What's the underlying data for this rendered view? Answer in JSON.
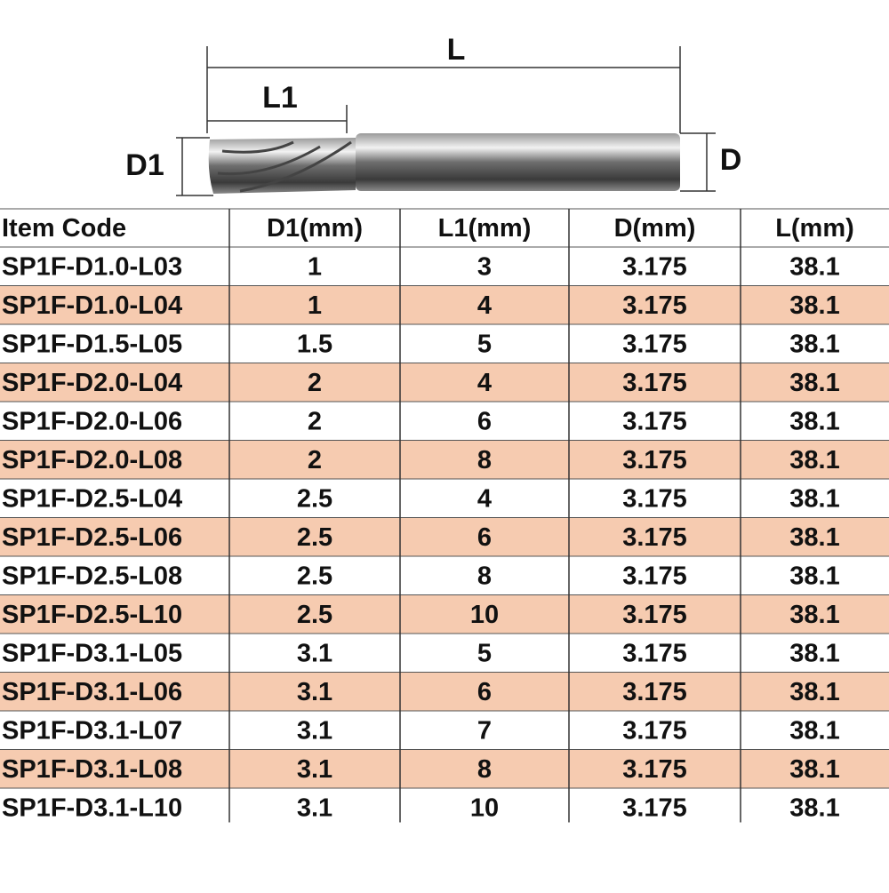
{
  "diagram": {
    "length_label": "L",
    "flute_length_label": "L1",
    "cutting_diameter_label": "D1",
    "shank_diameter_label": "D"
  },
  "table": {
    "header": [
      "Item Code",
      "D1(mm)",
      "L1(mm)",
      "D(mm)",
      "L(mm)"
    ],
    "rows": [
      [
        "SP1F-D1.0-L03",
        "1",
        "3",
        "3.175",
        "38.1"
      ],
      [
        "SP1F-D1.0-L04",
        "1",
        "4",
        "3.175",
        "38.1"
      ],
      [
        "SP1F-D1.5-L05",
        "1.5",
        "5",
        "3.175",
        "38.1"
      ],
      [
        "SP1F-D2.0-L04",
        "2",
        "4",
        "3.175",
        "38.1"
      ],
      [
        "SP1F-D2.0-L06",
        "2",
        "6",
        "3.175",
        "38.1"
      ],
      [
        "SP1F-D2.0-L08",
        "2",
        "8",
        "3.175",
        "38.1"
      ],
      [
        "SP1F-D2.5-L04",
        "2.5",
        "4",
        "3.175",
        "38.1"
      ],
      [
        "SP1F-D2.5-L06",
        "2.5",
        "6",
        "3.175",
        "38.1"
      ],
      [
        "SP1F-D2.5-L08",
        "2.5",
        "8",
        "3.175",
        "38.1"
      ],
      [
        "SP1F-D2.5-L10",
        "2.5",
        "10",
        "3.175",
        "38.1"
      ],
      [
        "SP1F-D3.1-L05",
        "3.1",
        "5",
        "3.175",
        "38.1"
      ],
      [
        "SP1F-D3.1-L06",
        "3.1",
        "6",
        "3.175",
        "38.1"
      ],
      [
        "SP1F-D3.1-L07",
        "3.1",
        "7",
        "3.175",
        "38.1"
      ],
      [
        "SP1F-D3.1-L08",
        "3.1",
        "8",
        "3.175",
        "38.1"
      ],
      [
        "SP1F-D3.1-L10",
        "3.1",
        "10",
        "3.175",
        "38.1"
      ]
    ]
  }
}
